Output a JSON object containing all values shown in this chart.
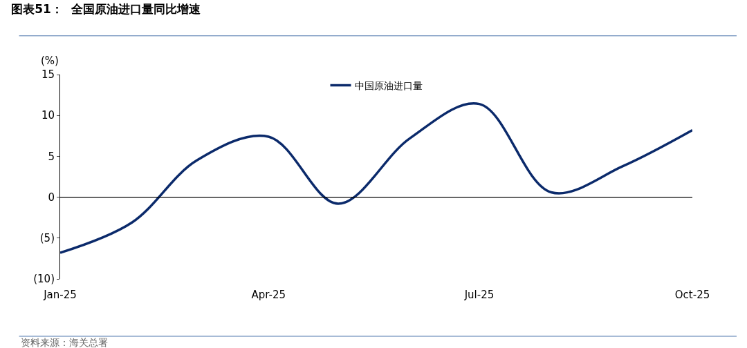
{
  "chart_data": {
    "type": "line",
    "title": "图表51：  全国原油进口量同比增速",
    "ylabel": "(%)",
    "x": [
      "2025-01",
      "2025-02",
      "2025-03",
      "2025-04",
      "2025-05",
      "2025-06",
      "2025-07",
      "2025-08",
      "2025-09",
      "2025-10"
    ],
    "series": [
      {
        "name": "中国原油进口量",
        "color": "#0b2a6b",
        "values": [
          -6.8,
          -3.1,
          4.5,
          7.4,
          -0.8,
          7.2,
          11.4,
          0.6,
          3.8,
          8.2
        ]
      }
    ],
    "xlim": [
      "2025-01",
      "2025-10"
    ],
    "xticks": [
      {
        "value": "2025-01",
        "label": "Jan-25"
      },
      {
        "value": "2025-04",
        "label": "Apr-25"
      },
      {
        "value": "2025-07",
        "label": "Jul-25"
      },
      {
        "value": "2025-10",
        "label": "Oct-25"
      }
    ],
    "ylim": [
      -10,
      15
    ],
    "yticks": [
      {
        "value": -10,
        "label": "(10)"
      },
      {
        "value": -5,
        "label": "(5)"
      },
      0,
      5,
      10,
      15
    ],
    "ref_lines": [
      {
        "axis": "y",
        "value": 0,
        "color": "#000000"
      }
    ],
    "legend": "top",
    "marker": "none",
    "line_style": "solid",
    "annotations": [
      "资料来源：海关总署"
    ]
  }
}
